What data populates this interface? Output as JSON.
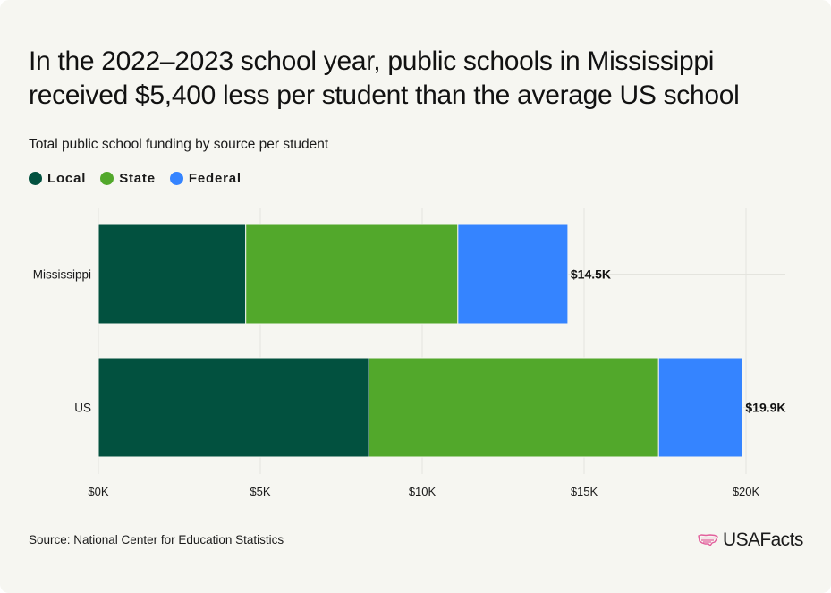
{
  "title": "In the 2022–2023 school year, public schools in Mississippi received $5,400 less per student than the average US school",
  "subtitle": "Total public school funding by source per student",
  "source": "Source: National Center for Education Statistics",
  "logo": {
    "text": "USAFacts",
    "icon": "us-map-flag-icon"
  },
  "colors": {
    "background": "#f6f6f1",
    "local": "#02513f",
    "state": "#52a82b",
    "federal": "#3584ff"
  },
  "chart_data": {
    "type": "bar",
    "orientation": "horizontal",
    "stacked": true,
    "title": "In the 2022–2023 school year, public schools in Mississippi received $5,400 less per student than the average US school",
    "subtitle": "Total public school funding by source per student",
    "categories": [
      "Mississippi",
      "US"
    ],
    "series": [
      {
        "name": "Local",
        "color": "#02513f",
        "values": [
          4550,
          8350
        ]
      },
      {
        "name": "State",
        "color": "#52a82b",
        "values": [
          6550,
          8950
        ]
      },
      {
        "name": "Federal",
        "color": "#3584ff",
        "values": [
          3400,
          2600
        ]
      }
    ],
    "totals": [
      14500,
      19900
    ],
    "total_labels": [
      "$14.5K",
      "$19.9K"
    ],
    "x_ticks": [
      0,
      5000,
      10000,
      15000,
      20000
    ],
    "x_tick_labels": [
      "$0K",
      "$5K",
      "$10K",
      "$15K",
      "$20K"
    ],
    "xlim": [
      0,
      20000
    ],
    "grid": true,
    "legend": "top-left"
  }
}
